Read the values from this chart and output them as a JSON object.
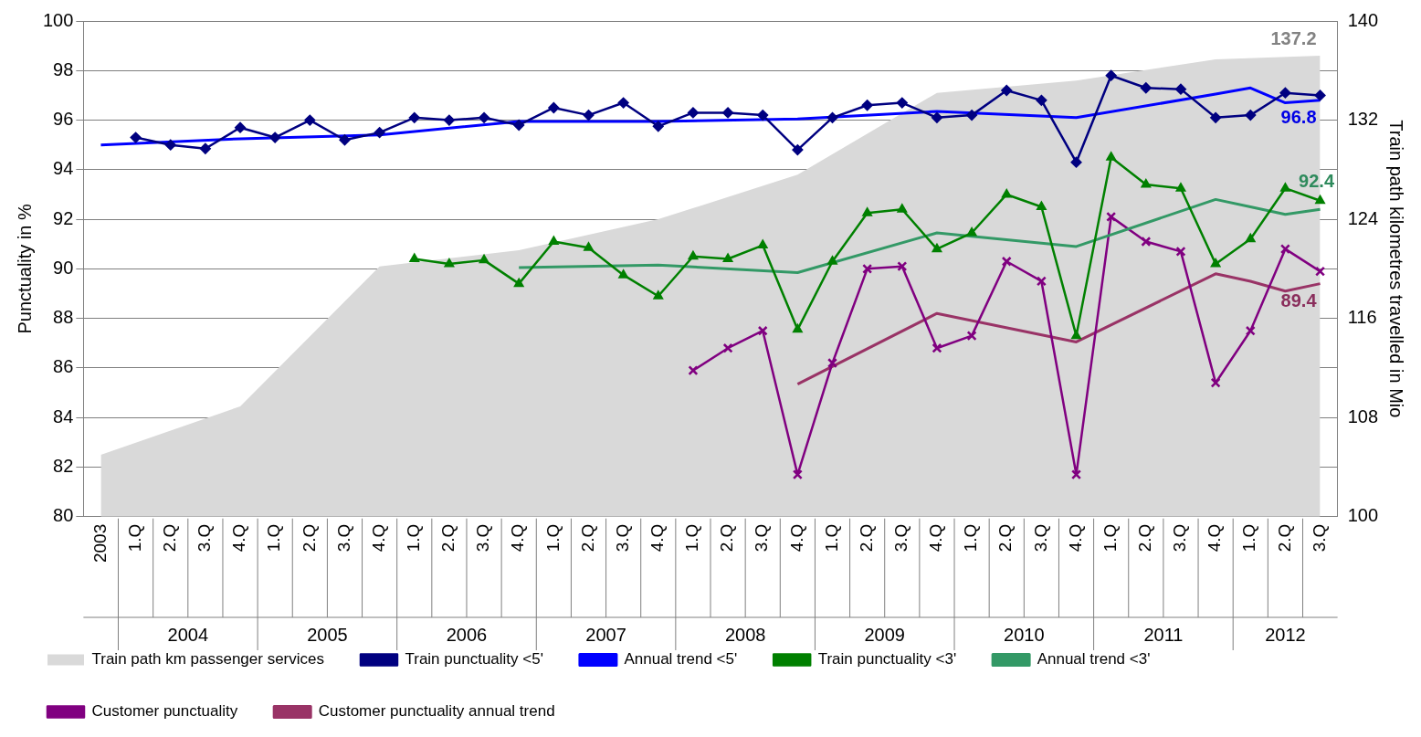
{
  "chart_data": {
    "type": "line",
    "categories": [
      "2003",
      "1.Q",
      "2.Q",
      "3.Q",
      "4.Q",
      "1.Q",
      "2.Q",
      "3.Q",
      "4.Q",
      "1.Q",
      "2.Q",
      "3.Q",
      "4.Q",
      "1.Q",
      "2.Q",
      "3.Q",
      "4.Q",
      "1.Q",
      "2.Q",
      "3.Q",
      "4.Q",
      "1.Q",
      "2.Q",
      "3.Q",
      "4.Q",
      "1.Q",
      "2.Q",
      "3.Q",
      "4.Q",
      "1.Q",
      "2.Q",
      "3.Q",
      "4.Q",
      "1.Q",
      "2.Q",
      "3.Q"
    ],
    "annotations": [
      "2004",
      "2005",
      "2006",
      "2007",
      "2008",
      "2009",
      "2010",
      "2011",
      "2012"
    ],
    "ylabel": "Punctuality in %",
    "y2label": "Train path kilometres travelled in Mio",
    "ylim": [
      80,
      100
    ],
    "yticks": [
      80,
      82,
      84,
      86,
      88,
      90,
      92,
      94,
      96,
      98,
      100
    ],
    "y2lim": [
      100,
      140
    ],
    "y2ticks": [
      100,
      108,
      116,
      124,
      132,
      140
    ],
    "grid": "y",
    "legend": "bottom",
    "series": [
      {
        "name": "Train path km passenger services",
        "type": "area",
        "axis": "y2",
        "color": "#d9d9d9",
        "marker": "none",
        "values": [
          105.0,
          null,
          null,
          null,
          108.9,
          null,
          null,
          null,
          120.2,
          null,
          null,
          null,
          121.5,
          null,
          null,
          null,
          124.0,
          null,
          null,
          null,
          127.6,
          null,
          null,
          null,
          134.2,
          null,
          null,
          null,
          135.2,
          null,
          null,
          null,
          136.9,
          null,
          null,
          137.2
        ],
        "value_labels": [
          null,
          null,
          null,
          null,
          null,
          null,
          null,
          null,
          null,
          null,
          null,
          null,
          null,
          null,
          null,
          null,
          null,
          null,
          null,
          null,
          null,
          null,
          null,
          null,
          null,
          null,
          null,
          null,
          null,
          null,
          null,
          null,
          null,
          null,
          null,
          "137.2"
        ]
      },
      {
        "name": "Train punctuality <5'",
        "color": "#000080",
        "marker": "diamond",
        "values": [
          null,
          95.3,
          95.0,
          94.85,
          95.7,
          95.3,
          96.0,
          95.2,
          95.5,
          96.1,
          96.0,
          96.1,
          95.8,
          96.5,
          96.2,
          96.7,
          95.75,
          96.3,
          96.3,
          96.2,
          94.8,
          96.1,
          96.6,
          96.7,
          96.1,
          96.2,
          97.2,
          96.8,
          94.3,
          97.8,
          97.3,
          97.25,
          96.1,
          96.2,
          97.1,
          97.0
        ]
      },
      {
        "name": "Annual trend <5'",
        "color": "#0000ff",
        "marker": "none",
        "values": [
          95.0,
          null,
          null,
          null,
          95.25,
          null,
          null,
          null,
          95.4,
          null,
          null,
          null,
          95.95,
          null,
          null,
          null,
          95.95,
          null,
          null,
          null,
          96.05,
          null,
          null,
          null,
          96.35,
          null,
          null,
          null,
          96.1,
          null,
          null,
          null,
          97.05,
          97.3,
          96.7,
          96.8
        ],
        "value_labels": [
          null,
          null,
          null,
          null,
          null,
          null,
          null,
          null,
          null,
          null,
          null,
          null,
          null,
          null,
          null,
          null,
          null,
          null,
          null,
          null,
          null,
          null,
          null,
          null,
          null,
          null,
          null,
          null,
          null,
          null,
          null,
          null,
          null,
          null,
          null,
          "96.8"
        ]
      },
      {
        "name": "Train punctuality <3'",
        "color": "#008000",
        "marker": "triangle",
        "values": [
          null,
          null,
          null,
          null,
          null,
          null,
          null,
          null,
          null,
          90.4,
          90.2,
          90.35,
          89.4,
          91.1,
          90.85,
          89.75,
          88.9,
          90.5,
          90.4,
          90.95,
          87.55,
          90.3,
          92.25,
          92.4,
          90.8,
          91.45,
          93.0,
          92.5,
          87.3,
          94.5,
          93.4,
          93.25,
          90.2,
          91.2,
          93.25,
          92.75
        ]
      },
      {
        "name": "Annual trend <3'",
        "color": "#339966",
        "marker": "none",
        "values": [
          null,
          null,
          null,
          null,
          null,
          null,
          null,
          null,
          null,
          null,
          null,
          null,
          90.05,
          null,
          null,
          null,
          90.15,
          null,
          null,
          null,
          89.85,
          null,
          null,
          null,
          91.45,
          null,
          null,
          null,
          90.9,
          null,
          null,
          null,
          92.8,
          92.5,
          92.2,
          92.4
        ],
        "value_labels": [
          null,
          null,
          null,
          null,
          null,
          null,
          null,
          null,
          null,
          null,
          null,
          null,
          null,
          null,
          null,
          null,
          null,
          null,
          null,
          null,
          null,
          null,
          null,
          null,
          null,
          null,
          null,
          null,
          null,
          null,
          null,
          null,
          null,
          null,
          null,
          "92.4"
        ]
      },
      {
        "name": "Customer punctuality",
        "color": "#800080",
        "marker": "cross",
        "values": [
          null,
          null,
          null,
          null,
          null,
          null,
          null,
          null,
          null,
          null,
          null,
          null,
          null,
          null,
          null,
          null,
          null,
          85.9,
          86.8,
          87.5,
          81.7,
          86.2,
          90.0,
          90.1,
          86.8,
          87.3,
          90.3,
          89.5,
          81.7,
          92.1,
          91.1,
          90.7,
          85.4,
          87.5,
          90.8,
          89.9
        ]
      },
      {
        "name": "Customer punctuality annual trend",
        "color": "#993366",
        "marker": "none",
        "values": [
          null,
          null,
          null,
          null,
          null,
          null,
          null,
          null,
          null,
          null,
          null,
          null,
          null,
          null,
          null,
          null,
          null,
          null,
          null,
          null,
          85.35,
          null,
          null,
          null,
          88.2,
          null,
          null,
          null,
          87.05,
          null,
          null,
          null,
          89.8,
          89.5,
          89.1,
          89.4
        ],
        "value_labels": [
          null,
          null,
          null,
          null,
          null,
          null,
          null,
          null,
          null,
          null,
          null,
          null,
          null,
          null,
          null,
          null,
          null,
          null,
          null,
          null,
          null,
          null,
          null,
          null,
          null,
          null,
          null,
          null,
          null,
          null,
          null,
          null,
          null,
          null,
          null,
          "89.4"
        ]
      }
    ]
  }
}
